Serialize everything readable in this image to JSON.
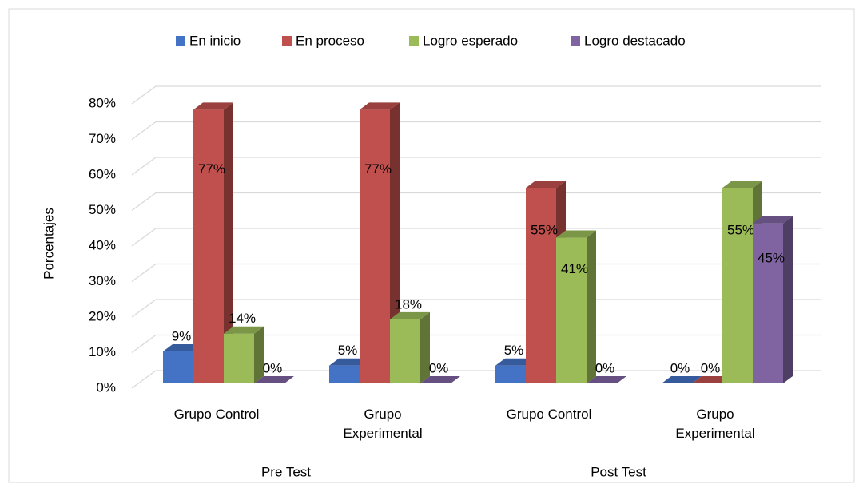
{
  "chart_data": {
    "type": "bar3d",
    "categories": [
      "Grupo Control",
      "Grupo Experimental",
      "Grupo Control",
      "Grupo Experimental"
    ],
    "groups": [
      "Pre Test",
      "Post Test"
    ],
    "y_label": "Porcentajes",
    "series": [
      {
        "name": "En inicio",
        "color": "#4472c4",
        "values": [
          9,
          5,
          5,
          0
        ],
        "value_labels": [
          "9%",
          "5%",
          "5%",
          "0%"
        ]
      },
      {
        "name": "En proceso",
        "color": "#c0504d",
        "values": [
          77,
          77,
          55,
          0
        ],
        "value_labels": [
          "77%",
          "77%",
          "55%",
          "0%"
        ]
      },
      {
        "name": "Logro esperado",
        "color": "#9bbb59",
        "values": [
          14,
          18,
          41,
          55
        ],
        "value_labels": [
          "14%",
          "18%",
          "41%",
          "55%"
        ]
      },
      {
        "name": "Logro destacado",
        "color": "#8064a2",
        "values": [
          0,
          0,
          0,
          45
        ],
        "value_labels": [
          "0%",
          "0%",
          "0%",
          "45%"
        ]
      }
    ],
    "ylim": [
      0,
      80
    ],
    "yticks": [
      {
        "value": 0,
        "label": "0%"
      },
      {
        "value": 10,
        "label": "10%"
      },
      {
        "value": 20,
        "label": "20%"
      },
      {
        "value": 30,
        "label": "30%"
      },
      {
        "value": 40,
        "label": "40%"
      },
      {
        "value": 50,
        "label": "50%"
      },
      {
        "value": 60,
        "label": "60%"
      },
      {
        "value": 70,
        "label": "70%"
      },
      {
        "value": 80,
        "label": "80%"
      }
    ],
    "grid": true,
    "legend": "top"
  }
}
